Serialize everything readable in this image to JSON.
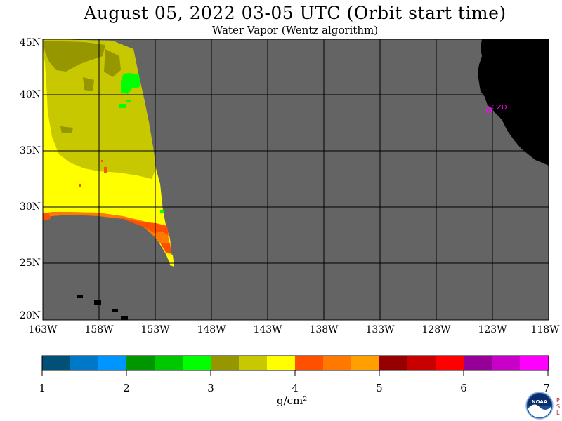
{
  "header": {
    "title": "August 05, 2022  03-05 UTC  (Orbit start time)",
    "subtitle": "Water Vapor (Wentz algorithm)"
  },
  "map": {
    "lat_labels": [
      "45N",
      "40N",
      "35N",
      "30N",
      "25N",
      "20N"
    ],
    "lon_labels": [
      "163W",
      "158W",
      "153W",
      "148W",
      "143W",
      "138W",
      "133W",
      "128W",
      "123W",
      "118W"
    ],
    "station_label": "CZD",
    "colors": {
      "background_no_data": "#646464",
      "land": "#000000",
      "grid": "#000000",
      "station": "#ff00ff"
    }
  },
  "colorbar": {
    "ticks": [
      "1",
      "2",
      "3",
      "4",
      "5",
      "6",
      "7"
    ],
    "units": "g/cm²",
    "colors": [
      "#005078",
      "#0078c8",
      "#0096ff",
      "#009600",
      "#00c800",
      "#00ff00",
      "#969600",
      "#c8c800",
      "#ffff00",
      "#ff5000",
      "#ff7800",
      "#ffa000",
      "#960000",
      "#c80000",
      "#ff0000",
      "#960096",
      "#c800c8",
      "#ff00ff"
    ]
  },
  "logo": {
    "text": "NOAA",
    "side_text": "PSL"
  }
}
